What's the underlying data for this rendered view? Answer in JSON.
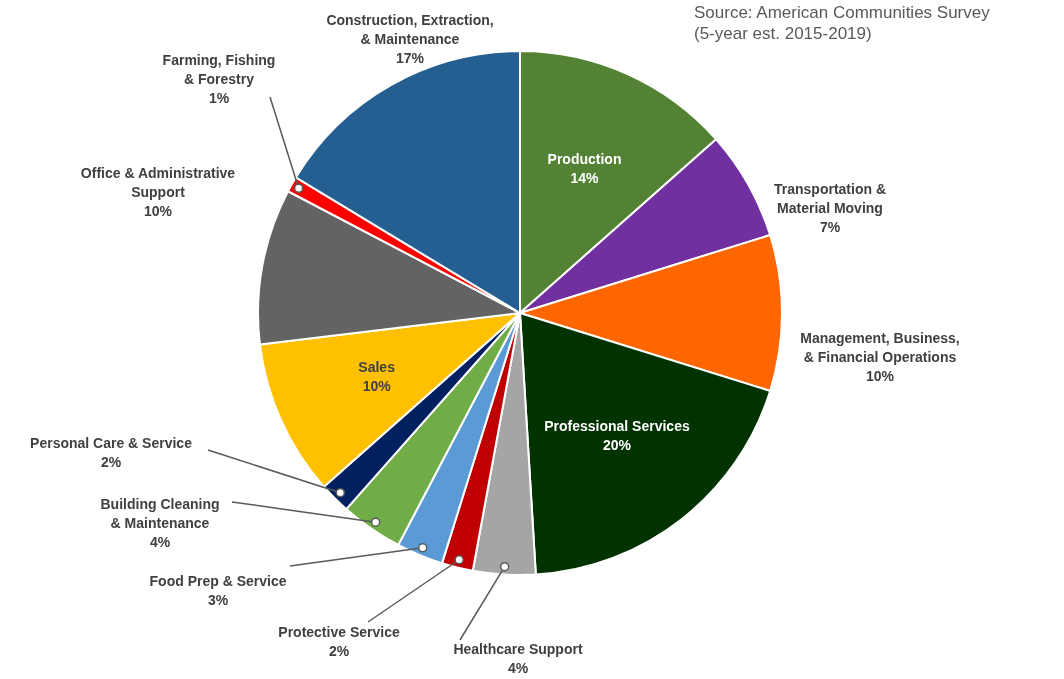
{
  "chart_data": {
    "type": "pie",
    "categories": [
      "Production",
      "Transportation & Material Moving",
      "Management, Business, & Financial Operations",
      "Professional Services",
      "Healthcare Support",
      "Protective Service",
      "Food Prep & Service",
      "Building Cleaning & Maintenance",
      "Personal Care & Service",
      "Sales",
      "Office & Administrative Support",
      "Farming, Fishing & Forestry",
      "Construction, Extraction, & Maintenance"
    ],
    "values": [
      14,
      7,
      10,
      20,
      4,
      2,
      3,
      4,
      2,
      10,
      10,
      1,
      17
    ],
    "value_labels": [
      "14%",
      "7%",
      "10%",
      "20%",
      "4%",
      "2%",
      "3%",
      "4%",
      "2%",
      "10%",
      "10%",
      "1%",
      "17%"
    ],
    "colors": [
      "#548235",
      "#7030a0",
      "#ff6600",
      "#003300",
      "#a5a5a5",
      "#c00000",
      "#5b9bd5",
      "#70ad47",
      "#002060",
      "#ffc000",
      "#636363",
      "#ff0000",
      "#255e91"
    ],
    "legend": false,
    "annotations": [
      "Source: American Communities Survey (5-year est. 2015-2019)"
    ]
  }
}
